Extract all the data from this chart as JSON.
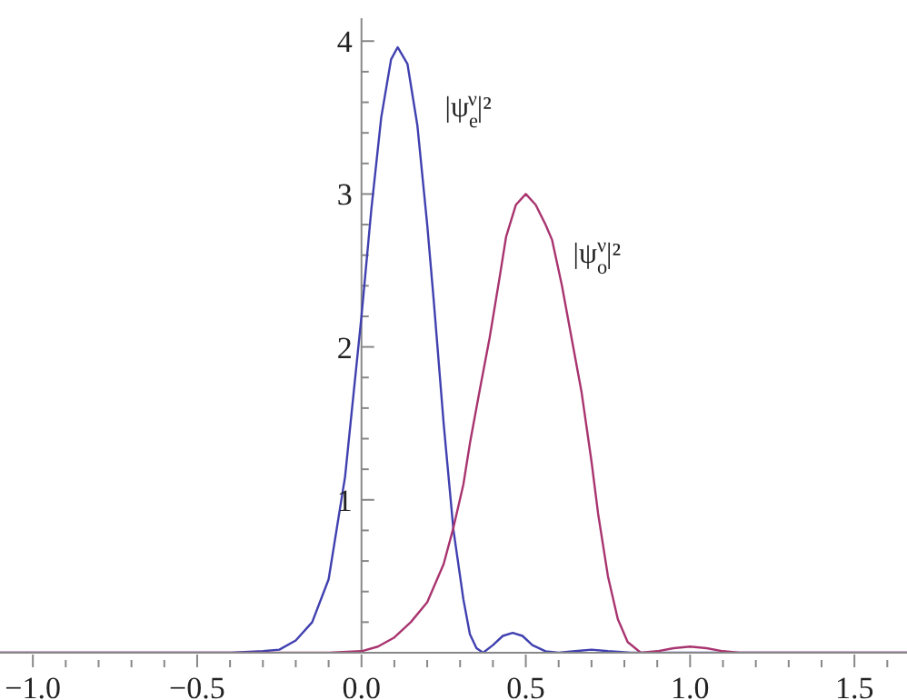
{
  "chart_data": {
    "type": "line",
    "xlim": [
      -1.1,
      1.66
    ],
    "ylim": [
      0,
      4.15
    ],
    "xticks": [
      {
        "value": -1.0,
        "label": "−1.0"
      },
      {
        "value": -0.9,
        "label": null
      },
      {
        "value": -0.8,
        "label": null
      },
      {
        "value": -0.7,
        "label": null
      },
      {
        "value": -0.6,
        "label": null
      },
      {
        "value": -0.5,
        "label": "−0.5"
      },
      {
        "value": -0.4,
        "label": null
      },
      {
        "value": -0.3,
        "label": null
      },
      {
        "value": -0.2,
        "label": null
      },
      {
        "value": -0.1,
        "label": null
      },
      {
        "value": 0,
        "label": "0.0"
      },
      {
        "value": 0.1,
        "label": null
      },
      {
        "value": 0.2,
        "label": null
      },
      {
        "value": 0.3,
        "label": null
      },
      {
        "value": 0.4,
        "label": null
      },
      {
        "value": 0.5,
        "label": "0.5"
      },
      {
        "value": 0.6,
        "label": null
      },
      {
        "value": 0.7,
        "label": null
      },
      {
        "value": 0.8,
        "label": null
      },
      {
        "value": 0.9,
        "label": null
      },
      {
        "value": 1.0,
        "label": "1.0"
      },
      {
        "value": 1.1,
        "label": null
      },
      {
        "value": 1.2,
        "label": null
      },
      {
        "value": 1.3,
        "label": null
      },
      {
        "value": 1.4,
        "label": null
      },
      {
        "value": 1.5,
        "label": "1.5"
      },
      {
        "value": 1.6,
        "label": null
      }
    ],
    "yticks": [
      {
        "value": 0.2,
        "label": null
      },
      {
        "value": 0.4,
        "label": null
      },
      {
        "value": 0.6,
        "label": null
      },
      {
        "value": 0.8,
        "label": null
      },
      1,
      {
        "value": 1.2,
        "label": null
      },
      {
        "value": 1.4,
        "label": null
      },
      {
        "value": 1.6,
        "label": null
      },
      {
        "value": 1.8,
        "label": null
      },
      2,
      {
        "value": 2.2,
        "label": null
      },
      {
        "value": 2.4,
        "label": null
      },
      {
        "value": 2.6,
        "label": null
      },
      {
        "value": 2.8,
        "label": null
      },
      3,
      {
        "value": 3.2,
        "label": null
      },
      {
        "value": 3.4,
        "label": null
      },
      {
        "value": 3.6,
        "label": null
      },
      {
        "value": 3.8,
        "label": null
      },
      4
    ],
    "series": [
      {
        "name": "|ψ$_{e}$$^{ν}$|²",
        "color": "#4040b0",
        "x": [
          -1.1,
          -0.4,
          -0.3,
          -0.25,
          -0.2,
          -0.15,
          -0.1,
          -0.05,
          0,
          0.03,
          0.06,
          0.09,
          0.11,
          0.14,
          0.17,
          0.2,
          0.22,
          0.25,
          0.28,
          0.31,
          0.33,
          0.35,
          0.37,
          0.4,
          0.43,
          0.46,
          0.49,
          0.52,
          0.56,
          0.6,
          0.65,
          0.7,
          0.75,
          0.82,
          1.66
        ],
        "values": [
          0,
          0,
          0.01,
          0.02,
          0.08,
          0.2,
          0.48,
          1.15,
          2.2,
          2.9,
          3.5,
          3.88,
          3.96,
          3.85,
          3.45,
          2.8,
          2.3,
          1.5,
          0.8,
          0.35,
          0.12,
          0.03,
          0,
          0.05,
          0.11,
          0.13,
          0.11,
          0.05,
          0.01,
          0,
          0.01,
          0.02,
          0.01,
          0,
          0
        ]
      },
      {
        "name": "|ψ$_{o}$$^{ν}$|²",
        "color": "#a8346f",
        "x": [
          -1.1,
          -0.1,
          0,
          0.05,
          0.1,
          0.15,
          0.2,
          0.25,
          0.28,
          0.31,
          0.33,
          0.36,
          0.39,
          0.42,
          0.44,
          0.47,
          0.5,
          0.53,
          0.56,
          0.58,
          0.61,
          0.64,
          0.67,
          0.7,
          0.72,
          0.75,
          0.78,
          0.81,
          0.85,
          0.9,
          0.95,
          1.0,
          1.05,
          1.1,
          1.15,
          1.66
        ],
        "values": [
          0,
          0,
          0.01,
          0.04,
          0.1,
          0.2,
          0.33,
          0.58,
          0.82,
          1.1,
          1.37,
          1.72,
          2.06,
          2.45,
          2.72,
          2.93,
          3.0,
          2.93,
          2.8,
          2.7,
          2.4,
          2.05,
          1.7,
          1.25,
          0.91,
          0.5,
          0.22,
          0.07,
          0,
          0.01,
          0.03,
          0.04,
          0.03,
          0.01,
          0,
          0
        ]
      }
    ]
  }
}
